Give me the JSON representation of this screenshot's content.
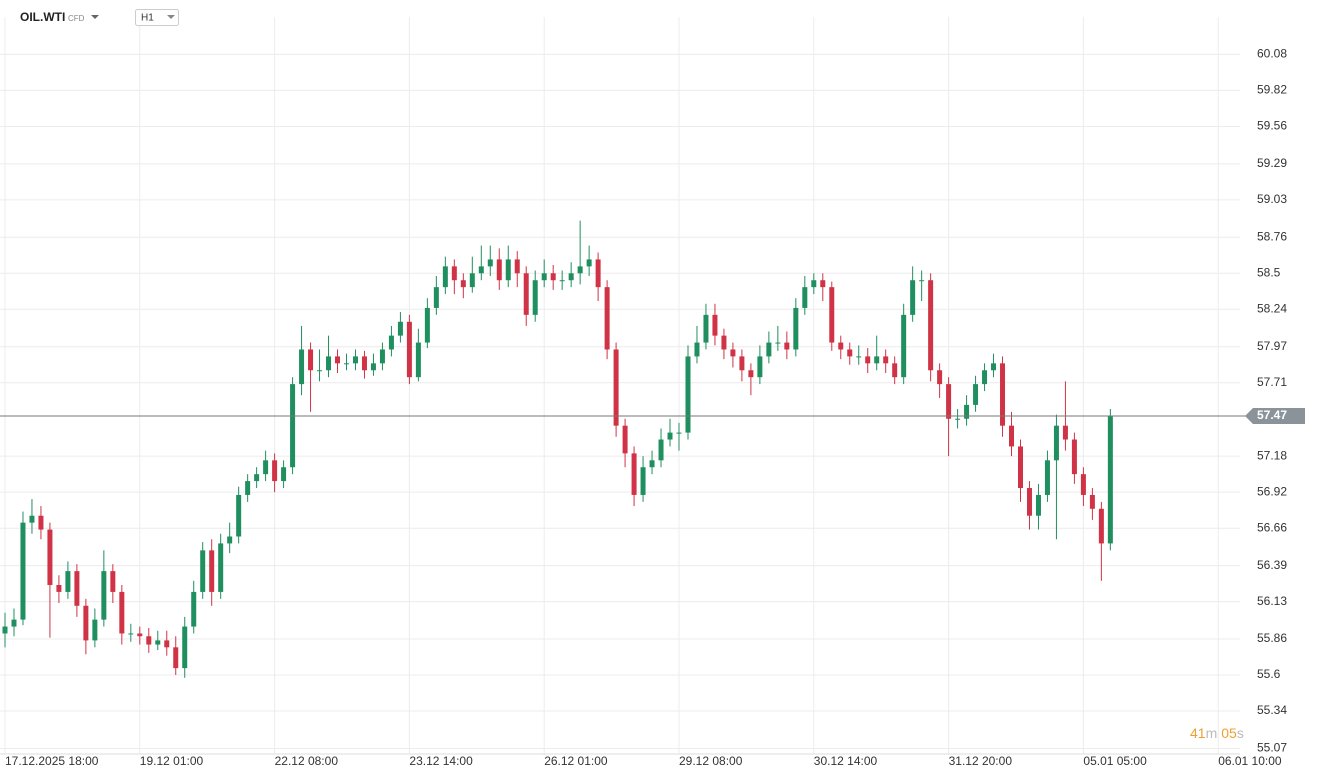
{
  "toolbar": {
    "symbol": "OIL.WTI",
    "kind": "CFD",
    "interval": "H1"
  },
  "timer": [
    "41",
    "m",
    "05",
    "s"
  ],
  "chart_data": {
    "type": "candlestick",
    "up_color": "#1f8f5f",
    "down_color": "#d03346",
    "grid": true,
    "ylim": [
      55.03,
      60.35
    ],
    "yticks": [
      60.08,
      59.82,
      59.56,
      59.29,
      59.03,
      58.76,
      58.5,
      58.24,
      57.97,
      57.71,
      57.18,
      56.92,
      56.66,
      56.39,
      56.13,
      55.86,
      55.6,
      55.34,
      55.07
    ],
    "last_price": 57.47,
    "categories": [
      "17.12.2025 18:00",
      null,
      null,
      null,
      null,
      null,
      null,
      null,
      null,
      null,
      null,
      null,
      null,
      null,
      null,
      "19.12 01:00",
      null,
      null,
      null,
      null,
      null,
      null,
      null,
      null,
      null,
      null,
      null,
      null,
      null,
      null,
      "22.12 08:00",
      null,
      null,
      null,
      null,
      null,
      null,
      null,
      null,
      null,
      null,
      null,
      null,
      null,
      null,
      "23.12 14:00",
      null,
      null,
      null,
      null,
      null,
      null,
      null,
      null,
      null,
      null,
      null,
      null,
      null,
      null,
      "26.12 01:00",
      null,
      null,
      null,
      null,
      null,
      null,
      null,
      null,
      null,
      null,
      null,
      null,
      null,
      null,
      "29.12 08:00",
      null,
      null,
      null,
      null,
      null,
      null,
      null,
      null,
      null,
      null,
      null,
      null,
      null,
      null,
      "30.12 14:00",
      null,
      null,
      null,
      null,
      null,
      null,
      null,
      null,
      null,
      null,
      null,
      null,
      null,
      null,
      "31.12 20:00",
      null,
      null,
      null,
      null,
      null,
      null,
      null,
      null,
      null,
      null,
      null,
      null,
      null,
      null,
      "05.01 05:00",
      null,
      null,
      null,
      null,
      null,
      null,
      null,
      null,
      null,
      null,
      null,
      null,
      null,
      null,
      "06.01 10:00"
    ],
    "open": [
      55.9,
      55.95,
      56.0,
      56.7,
      56.75,
      56.65,
      56.25,
      56.2,
      56.35,
      56.1,
      55.85,
      56.0,
      56.35,
      56.2,
      55.9,
      55.9,
      55.88,
      55.82,
      55.85,
      55.8,
      55.65,
      55.95,
      56.2,
      56.5,
      56.2,
      56.55,
      56.6,
      56.9,
      57.0,
      57.05,
      57.15,
      57.0,
      57.1,
      57.7,
      57.95,
      57.8,
      57.8,
      57.9,
      57.85,
      57.85,
      57.9,
      57.8,
      57.85,
      57.95,
      58.05,
      58.15,
      57.75,
      58.0,
      58.25,
      58.4,
      58.55,
      58.45,
      58.4,
      58.5,
      58.55,
      58.6,
      58.45,
      58.6,
      58.5,
      58.2,
      58.45,
      58.5,
      58.45,
      58.45,
      58.5,
      58.55,
      58.6,
      58.4,
      57.95,
      57.4,
      57.2,
      56.9,
      57.1,
      57.15,
      57.3,
      57.35,
      57.35,
      57.9,
      58.0,
      58.2,
      58.05,
      57.95,
      57.9,
      57.8,
      57.75,
      57.9,
      58.0,
      58.0,
      57.95,
      58.25,
      58.4,
      58.45,
      58.4,
      58.0,
      57.95,
      57.9,
      57.9,
      57.85,
      57.9,
      57.85,
      57.75,
      58.2,
      58.45,
      58.45,
      57.8,
      57.7,
      57.45,
      57.45,
      57.55,
      57.7,
      57.8,
      57.85,
      57.4,
      57.25,
      56.95,
      56.75,
      56.9,
      57.15,
      57.4,
      57.3,
      57.05,
      56.9,
      56.8,
      56.55,
      null,
      null,
      null,
      null,
      null,
      null,
      null,
      null,
      null,
      null,
      null,
      null
    ],
    "high": [
      56.05,
      56.08,
      56.78,
      56.87,
      56.82,
      56.7,
      56.32,
      56.42,
      56.4,
      56.15,
      56.08,
      56.5,
      56.4,
      56.25,
      55.97,
      55.95,
      55.94,
      55.92,
      55.92,
      55.88,
      56.02,
      56.28,
      56.56,
      56.58,
      56.62,
      56.7,
      56.96,
      57.05,
      57.1,
      57.22,
      57.2,
      57.15,
      57.75,
      58.12,
      58.0,
      57.95,
      58.05,
      57.95,
      57.92,
      57.95,
      57.94,
      57.92,
      58.0,
      58.12,
      58.22,
      58.2,
      58.1,
      58.32,
      58.48,
      58.62,
      58.6,
      58.5,
      58.62,
      58.7,
      58.7,
      58.68,
      58.7,
      58.66,
      58.55,
      58.52,
      58.6,
      58.56,
      58.52,
      58.58,
      58.88,
      58.7,
      58.65,
      58.45,
      58.0,
      57.45,
      57.25,
      57.18,
      57.22,
      57.38,
      57.45,
      57.42,
      57.98,
      58.12,
      58.28,
      58.28,
      58.1,
      58.0,
      57.95,
      57.85,
      57.98,
      58.08,
      58.12,
      58.08,
      58.32,
      58.48,
      58.5,
      58.5,
      58.44,
      58.05,
      58.0,
      57.98,
      57.96,
      58.05,
      57.95,
      57.9,
      58.28,
      58.55,
      58.52,
      58.5,
      57.85,
      57.75,
      57.52,
      57.62,
      57.76,
      57.85,
      57.92,
      57.9,
      57.5,
      57.3,
      57.0,
      56.98,
      57.22,
      57.48,
      57.72,
      57.35,
      57.1,
      56.95,
      56.85,
      57.52,
      null,
      null,
      null,
      null,
      null,
      null,
      null,
      null,
      null,
      null,
      null,
      null
    ],
    "low": [
      55.8,
      55.88,
      55.96,
      56.62,
      56.58,
      55.87,
      56.12,
      56.15,
      56.02,
      55.75,
      55.8,
      55.95,
      56.12,
      55.82,
      55.84,
      55.82,
      55.76,
      55.78,
      55.74,
      55.6,
      55.58,
      55.9,
      56.15,
      56.1,
      56.15,
      56.48,
      56.55,
      56.85,
      56.95,
      57.0,
      56.92,
      56.95,
      57.05,
      57.62,
      57.5,
      57.72,
      57.75,
      57.78,
      57.8,
      57.8,
      57.74,
      57.76,
      57.8,
      57.9,
      58.0,
      57.7,
      57.72,
      57.96,
      58.2,
      58.35,
      58.35,
      58.32,
      58.36,
      58.45,
      58.48,
      58.38,
      58.4,
      58.4,
      58.12,
      58.15,
      58.4,
      58.38,
      58.38,
      58.4,
      58.42,
      58.48,
      58.3,
      57.88,
      57.32,
      57.1,
      56.82,
      56.85,
      57.05,
      57.1,
      57.25,
      57.22,
      57.3,
      57.85,
      57.95,
      57.98,
      57.88,
      57.82,
      57.72,
      57.62,
      57.7,
      57.85,
      57.94,
      57.88,
      57.9,
      58.2,
      58.35,
      58.3,
      57.94,
      57.88,
      57.84,
      57.84,
      57.78,
      57.8,
      57.78,
      57.7,
      57.7,
      58.15,
      58.3,
      57.72,
      57.6,
      57.18,
      57.38,
      57.4,
      57.5,
      57.65,
      57.75,
      57.32,
      57.18,
      56.85,
      56.65,
      56.65,
      56.85,
      56.58,
      57.22,
      56.98,
      56.82,
      56.72,
      56.28,
      56.5,
      null,
      null,
      null,
      null,
      null,
      null,
      null,
      null,
      null,
      null,
      null,
      null
    ],
    "close": [
      55.95,
      56.0,
      56.7,
      56.75,
      56.65,
      56.25,
      56.2,
      56.35,
      56.1,
      55.85,
      56.0,
      56.35,
      56.2,
      55.9,
      55.9,
      55.88,
      55.82,
      55.85,
      55.8,
      55.65,
      55.95,
      56.2,
      56.5,
      56.2,
      56.55,
      56.6,
      56.9,
      57.0,
      57.05,
      57.15,
      57.0,
      57.1,
      57.7,
      57.95,
      57.8,
      57.8,
      57.9,
      57.85,
      57.85,
      57.9,
      57.8,
      57.85,
      57.95,
      58.05,
      58.15,
      57.75,
      58.0,
      58.25,
      58.4,
      58.55,
      58.45,
      58.4,
      58.5,
      58.55,
      58.6,
      58.45,
      58.6,
      58.5,
      58.2,
      58.45,
      58.5,
      58.45,
      58.45,
      58.5,
      58.55,
      58.6,
      58.4,
      57.95,
      57.4,
      57.2,
      56.9,
      57.1,
      57.15,
      57.3,
      57.35,
      57.35,
      57.9,
      58.0,
      58.2,
      58.05,
      57.95,
      57.9,
      57.8,
      57.75,
      57.9,
      58.0,
      58.0,
      57.95,
      58.25,
      58.4,
      58.45,
      58.4,
      58.0,
      57.95,
      57.9,
      57.9,
      57.85,
      57.9,
      57.85,
      57.75,
      58.2,
      58.45,
      58.45,
      57.8,
      57.7,
      57.45,
      57.45,
      57.55,
      57.7,
      57.8,
      57.85,
      57.4,
      57.25,
      56.95,
      56.75,
      56.9,
      57.15,
      57.4,
      57.3,
      57.05,
      56.9,
      56.8,
      56.55,
      57.47,
      null,
      null,
      null,
      null,
      null,
      null,
      null,
      null,
      null,
      null,
      null,
      null
    ]
  }
}
